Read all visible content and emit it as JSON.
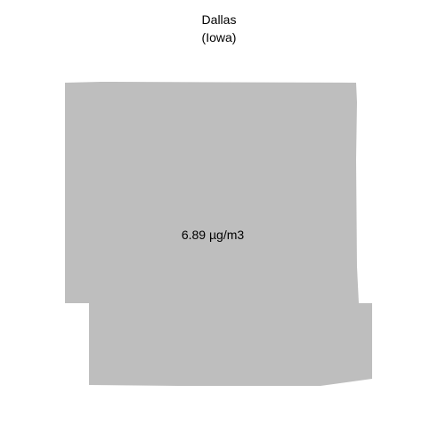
{
  "map": {
    "title": "Dallas",
    "subtitle": "(Iowa)",
    "region_fill": "#bebebe",
    "value_label": "6.89 µg/m3"
  }
}
